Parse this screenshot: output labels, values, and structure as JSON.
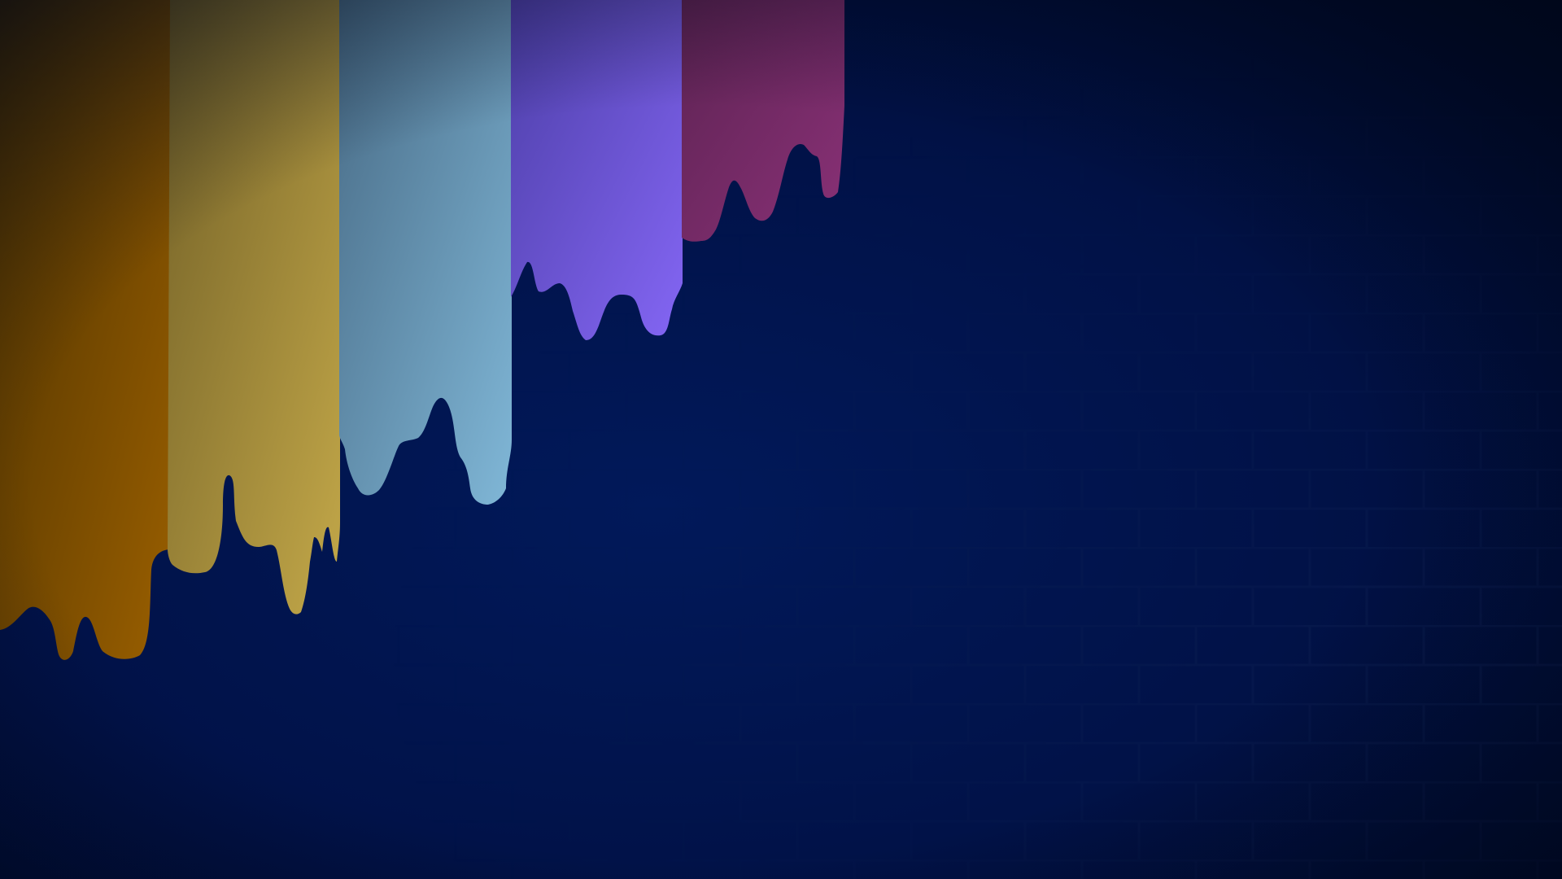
{
  "desktop": {
    "wallpaper": {
      "description_colors": {
        "background_center": "#01195a",
        "background_edge": "#000c33",
        "brick_line": "#0b1f52",
        "vignette": "#000616"
      },
      "paint_drips": [
        {
          "name": "orange",
          "color_dark": "#4a3000",
          "color_light": "#9a5f00"
        },
        {
          "name": "yellow",
          "color_dark": "#736127",
          "color_light": "#c3a849"
        },
        {
          "name": "light-blue",
          "color_dark": "#486b86",
          "color_light": "#80b7d7"
        },
        {
          "name": "purple",
          "color_dark": "#4d3fa8",
          "color_light": "#8466f4"
        },
        {
          "name": "magenta",
          "color_dark": "#5d2353",
          "color_light": "#8a3177"
        }
      ]
    }
  }
}
